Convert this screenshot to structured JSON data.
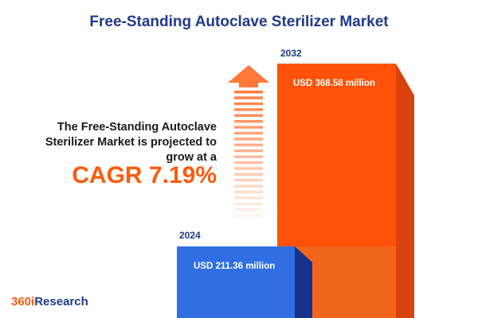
{
  "header": {
    "title": "Free-Standing Autoclave Sterilizer Market"
  },
  "summary": {
    "lines": [
      "The Free-Standing Autoclave",
      "Sterilizer Market is projected to",
      "grow at a"
    ],
    "cagr": "CAGR 7.19%"
  },
  "bars": [
    {
      "year": "2024",
      "label": "USD 211.36 million"
    },
    {
      "year": "2032",
      "label": "USD 368.58 million"
    }
  ],
  "logo": {
    "accent": "360i",
    "rest": "Research"
  }
}
